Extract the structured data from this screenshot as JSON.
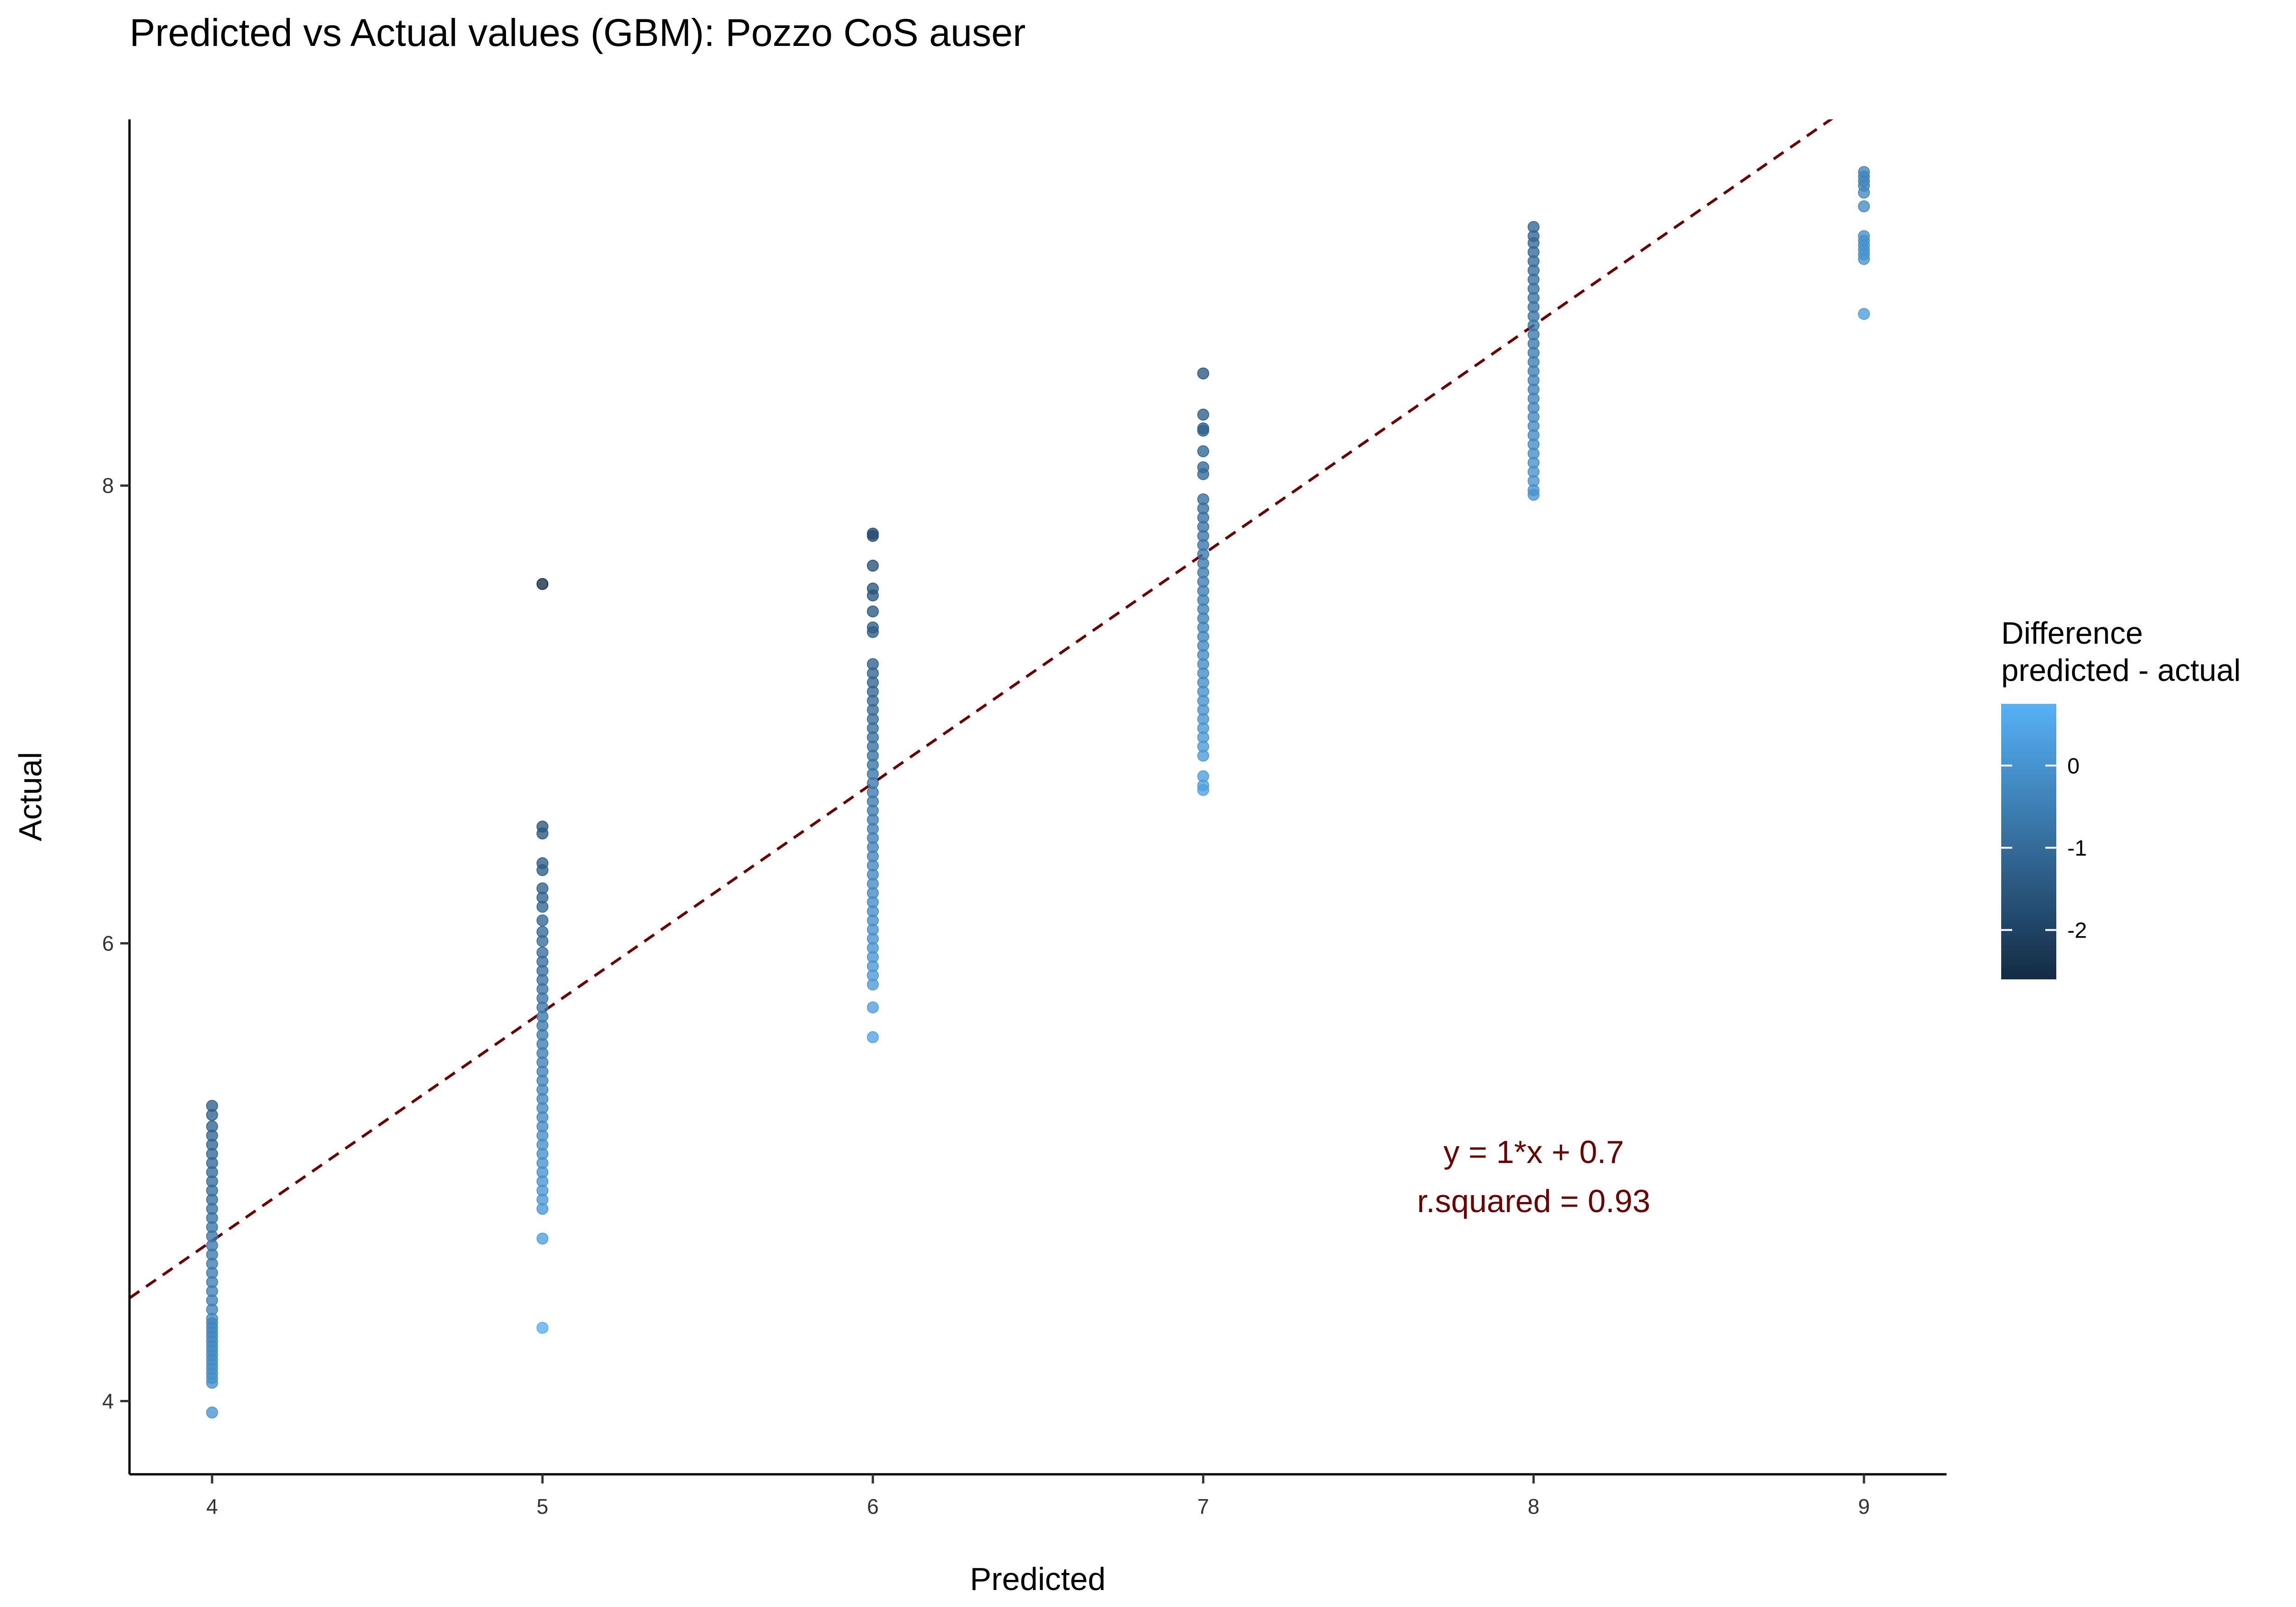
{
  "chart_data": {
    "type": "scatter",
    "title": "Predicted vs Actual values (GBM): Pozzo CoS auser",
    "xlabel": "Predicted",
    "ylabel": "Actual",
    "xlim": [
      3.75,
      9.25
    ],
    "ylim": [
      3.68,
      9.6
    ],
    "x_ticks": [
      4,
      5,
      6,
      7,
      8,
      9
    ],
    "y_ticks": [
      4,
      6,
      8
    ],
    "grid": false,
    "legend": {
      "title_line1": "Difference",
      "title_line2": "predicted - actual",
      "type": "colorbar",
      "range": [
        -2.6,
        0.75
      ],
      "ticks": [
        0,
        -1,
        -2
      ],
      "low_color": "#132B43",
      "high_color": "#56B1F7",
      "placement": "right"
    },
    "reference_line": {
      "slope": 1,
      "intercept": 0.7,
      "style": "dashed",
      "color": "#6B0000"
    },
    "annotation": {
      "line1": "y = 1*x + 0.7",
      "line2": "r.squared = 0.93",
      "color": "#6B0000"
    },
    "series": [
      {
        "x": 4,
        "y": [
          3.95,
          4.08,
          4.1,
          4.12,
          4.14,
          4.16,
          4.18,
          4.2,
          4.22,
          4.24,
          4.26,
          4.28,
          4.3,
          4.32,
          4.34,
          4.36,
          4.4,
          4.44,
          4.48,
          4.52,
          4.56,
          4.6,
          4.64,
          4.68,
          4.72,
          4.76,
          4.8,
          4.84,
          4.88,
          4.92,
          4.96,
          5.0,
          5.04,
          5.08,
          5.12,
          5.16,
          5.2,
          5.25,
          5.29
        ]
      },
      {
        "x": 5,
        "y": [
          4.32,
          4.71,
          4.84,
          4.88,
          4.92,
          4.96,
          5.0,
          5.04,
          5.08,
          5.12,
          5.16,
          5.2,
          5.24,
          5.28,
          5.32,
          5.36,
          5.4,
          5.44,
          5.48,
          5.52,
          5.56,
          5.6,
          5.64,
          5.68,
          5.72,
          5.76,
          5.8,
          5.84,
          5.88,
          5.92,
          5.96,
          6.01,
          6.05,
          6.1,
          6.16,
          6.2,
          6.24,
          6.32,
          6.35,
          6.48,
          6.51,
          7.57
        ]
      },
      {
        "x": 6,
        "y": [
          5.59,
          5.72,
          5.82,
          5.86,
          5.9,
          5.94,
          5.98,
          6.02,
          6.06,
          6.1,
          6.14,
          6.18,
          6.22,
          6.26,
          6.3,
          6.34,
          6.38,
          6.42,
          6.46,
          6.5,
          6.54,
          6.58,
          6.62,
          6.66,
          6.7,
          6.74,
          6.78,
          6.82,
          6.86,
          6.9,
          6.94,
          6.98,
          7.02,
          7.06,
          7.1,
          7.14,
          7.18,
          7.22,
          7.36,
          7.38,
          7.45,
          7.52,
          7.55,
          7.65,
          7.78,
          7.79
        ]
      },
      {
        "x": 7,
        "y": [
          6.67,
          6.69,
          6.73,
          6.82,
          6.86,
          6.9,
          6.94,
          6.98,
          7.02,
          7.06,
          7.1,
          7.14,
          7.18,
          7.22,
          7.26,
          7.3,
          7.34,
          7.38,
          7.42,
          7.46,
          7.5,
          7.54,
          7.58,
          7.62,
          7.66,
          7.7,
          7.74,
          7.78,
          7.82,
          7.86,
          7.9,
          7.94,
          8.05,
          8.08,
          8.15,
          8.24,
          8.25,
          8.31,
          8.49
        ]
      },
      {
        "x": 8,
        "y": [
          7.96,
          7.98,
          8.02,
          8.06,
          8.1,
          8.14,
          8.18,
          8.22,
          8.26,
          8.3,
          8.34,
          8.38,
          8.42,
          8.46,
          8.5,
          8.54,
          8.58,
          8.62,
          8.66,
          8.7,
          8.74,
          8.78,
          8.82,
          8.86,
          8.9,
          8.94,
          8.98,
          9.02,
          9.06,
          9.09,
          9.13
        ]
      },
      {
        "x": 9,
        "y": [
          8.75,
          8.99,
          9.01,
          9.03,
          9.05,
          9.07,
          9.09,
          9.22,
          9.28,
          9.31,
          9.33,
          9.35,
          9.37
        ]
      }
    ]
  }
}
